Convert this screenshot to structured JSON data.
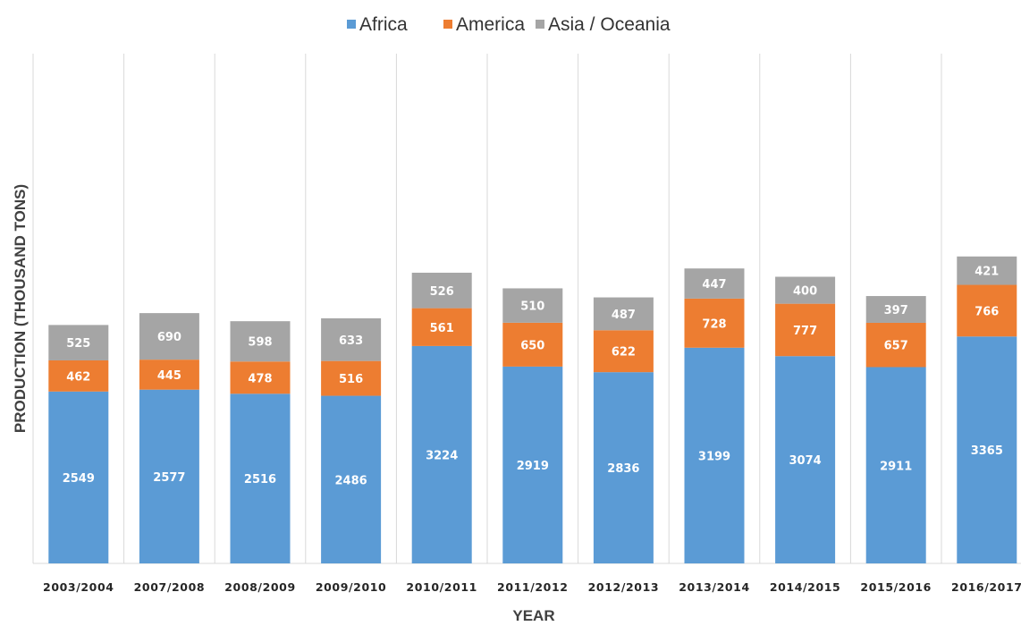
{
  "chart_data": {
    "type": "bar",
    "stacked": true,
    "xlabel": "YEAR",
    "ylabel": "PRODUCTION (THOUSAND TONS)",
    "legend_position": "top-center",
    "grid": "vertical category separators",
    "categories": [
      "2003/2004",
      "2007/2008",
      "2008/2009",
      "2009/2010",
      "2010/2011",
      "2011/2012",
      "2012/2013",
      "2013/2014",
      "2014/2015",
      "2015/2016",
      "2016/2017"
    ],
    "series": [
      {
        "name": "Africa",
        "color": "#5b9bd5",
        "values": [
          2549,
          2577,
          2516,
          2486,
          3224,
          2919,
          2836,
          3199,
          3074,
          2911,
          3365
        ]
      },
      {
        "name": "America",
        "color": "#ed7d31",
        "values": [
          462,
          445,
          478,
          516,
          561,
          650,
          622,
          728,
          777,
          657,
          766
        ]
      },
      {
        "name": "Asia / Oceania",
        "color": "#a5a5a5",
        "values": [
          525,
          690,
          598,
          633,
          526,
          510,
          487,
          447,
          400,
          397,
          421
        ]
      }
    ]
  }
}
